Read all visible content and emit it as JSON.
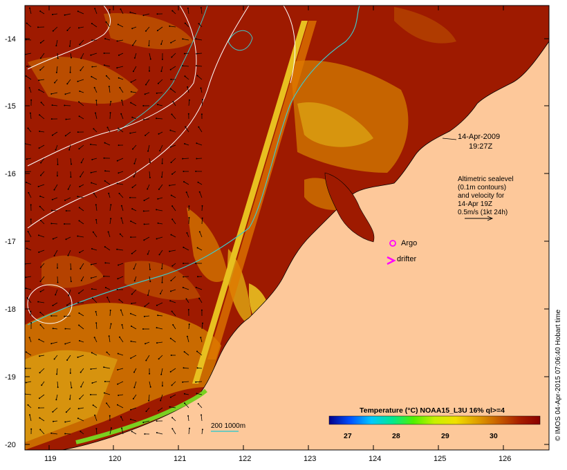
{
  "map": {
    "date": "14-Apr-2009",
    "time": "19:27Z",
    "land_color": "#fdc89a",
    "ocean_colors": [
      "#9e1a00",
      "#b83a00",
      "#cc6a00",
      "#d89a10",
      "#e8c020",
      "#9acd32"
    ]
  },
  "axes": {
    "x_ticks": [
      "119",
      "120",
      "121",
      "122",
      "123",
      "124",
      "125",
      "126"
    ],
    "y_ticks": [
      "-14",
      "-15",
      "-16",
      "-17",
      "-18",
      "-19",
      "-20"
    ]
  },
  "annotations": {
    "altimetry_lines": [
      "Altimetric sealevel",
      "(0.1m contours)",
      "and velocity for",
      "14-Apr 19Z",
      "0.5m/s (1kt 24h)"
    ]
  },
  "legend": {
    "argo_label": "Argo",
    "drifter_label": "drifter",
    "argo_color": "#ff00ff",
    "drifter_color": "#ff00ff",
    "isobath_label": "200  1000m",
    "isobath_color": "#40c8c8"
  },
  "colorbar": {
    "title": "Temperature (°C) NOAA15_L3U 16% ql>=4",
    "ticks": [
      "27",
      "28",
      "29",
      "30"
    ],
    "gradient": [
      "#00008b",
      "#0050ff",
      "#00c8ff",
      "#00e890",
      "#50f000",
      "#c8f000",
      "#f0e000",
      "#e0a000",
      "#c86000",
      "#a82000",
      "#8b0000"
    ]
  },
  "credit": "© IMOS 04-Apr-2015 07:06:40 Hobart time"
}
